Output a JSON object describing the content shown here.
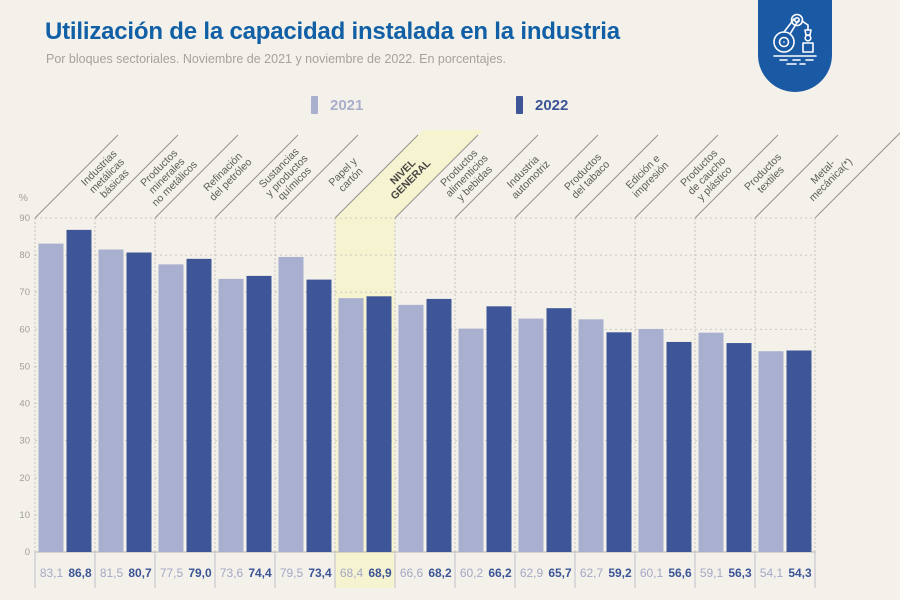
{
  "header": {
    "title": "Utilización de la capacidad instalada en la industria",
    "subtitle": "Por bloques sectoriales. Noviembre de 2021 y noviembre de 2022. En porcentajes.",
    "badge_icon": "robot-arm-icon",
    "badge_color": "#1a5aa5"
  },
  "legend": [
    {
      "label": "2021",
      "color": "#a9afce",
      "text_color": "#a9aecb"
    },
    {
      "label": "2022",
      "color": "#3e5697",
      "text_color": "#3a5496"
    }
  ],
  "chart_data": {
    "type": "bar",
    "title": "Utilización de la capacidad instalada en la industria",
    "subtitle": "Por bloques sectoriales. Noviembre de 2021 y noviembre de 2022. En porcentajes.",
    "unit": "%",
    "ylabel": "%",
    "ylim": [
      0,
      90
    ],
    "yticks": [
      0,
      10,
      20,
      30,
      40,
      50,
      60,
      70,
      80,
      90
    ],
    "grid": "horizontal-dashed",
    "legend_position": "top-center",
    "decimal_separator": ",",
    "categories": [
      "Industrias metálicas básicas",
      "Productos minerales no metálicos",
      "Refinación del petróleo",
      "Sustancias y productos químicos",
      "Papel y cartón",
      "NIVEL GENERAL",
      "Productos alimenticios y bebidas",
      "Industria automotriz",
      "Productos del tabaco",
      "Edición e impresión",
      "Productos de caucho y plástico",
      "Productos textiles",
      "Metal-mecánica(*)"
    ],
    "categories_lines": [
      [
        "Industrias",
        "metálicas",
        "básicas"
      ],
      [
        "Productos",
        "minerales",
        "no metálicos"
      ],
      [
        "Refinación",
        "del petróleo"
      ],
      [
        "Sustancias",
        "y productos",
        "químicos"
      ],
      [
        "Papel y",
        "cartón"
      ],
      [
        "NIVEL",
        "GENERAL"
      ],
      [
        "Productos",
        "alimenticios",
        "y bebidas"
      ],
      [
        "Industria",
        "automotriz"
      ],
      [
        "Productos",
        "del tabaco"
      ],
      [
        "Edición e",
        "impresión"
      ],
      [
        "Productos",
        "de caucho",
        "y plástico"
      ],
      [
        "Productos",
        "textiles"
      ],
      [
        "Metal-",
        "mecánica(*)"
      ]
    ],
    "highlight_category": "NIVEL GENERAL",
    "highlight_index": 5,
    "highlight_color": "#f6f3d0",
    "series": [
      {
        "name": "2021",
        "color": "#a9afce",
        "values": [
          83.1,
          81.5,
          77.5,
          73.6,
          79.5,
          68.4,
          66.6,
          60.2,
          62.9,
          62.7,
          60.1,
          59.1,
          54.1
        ]
      },
      {
        "name": "2022",
        "color": "#3e5697",
        "values": [
          86.8,
          80.7,
          79.0,
          74.4,
          73.4,
          68.9,
          68.2,
          66.2,
          65.7,
          59.2,
          56.6,
          56.3,
          54.3
        ]
      }
    ]
  },
  "colors": {
    "background": "#f4f1ea",
    "title": "#1160a6",
    "subtitle": "#a5a29c",
    "gridline": "#ccc9c2",
    "baseline": "#b7b4ae",
    "separator": "#c6c3bd",
    "diagonal": "#95938e",
    "tick_text": "#a09e99",
    "label_text": "#5d5c58",
    "value_2021": "#a3a8c6",
    "value_2022": "#3a5496"
  }
}
